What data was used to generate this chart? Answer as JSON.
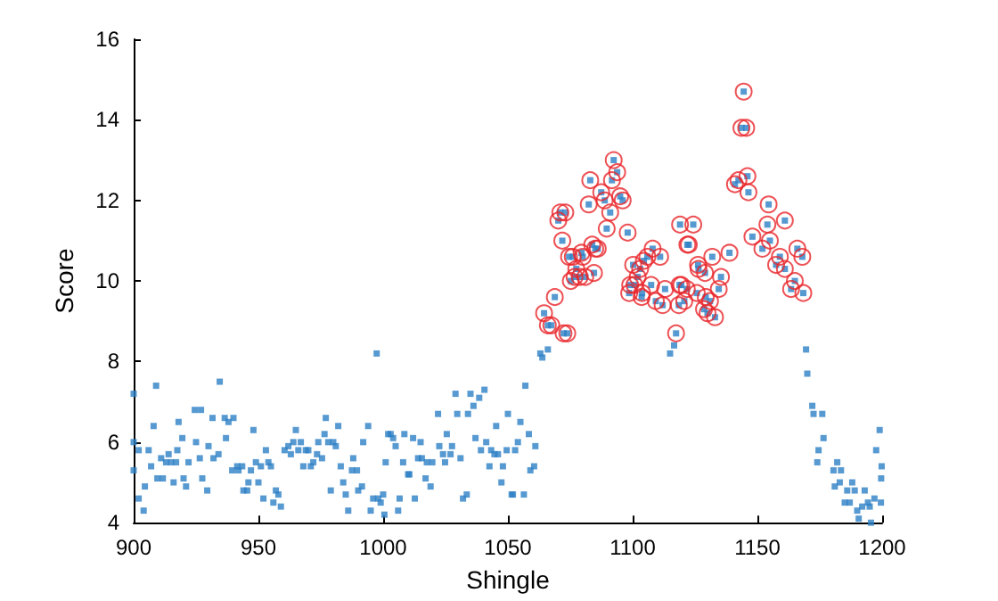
{
  "chart_data": {
    "type": "scatter",
    "xlabel": "Shingle",
    "ylabel": "Score",
    "xlim": [
      900,
      1200
    ],
    "xticks": [
      900,
      950,
      1000,
      1050,
      1100,
      1150,
      1200
    ],
    "ylim": [
      4,
      16
    ],
    "yticks": [
      4,
      6,
      8,
      10,
      12,
      14,
      16
    ],
    "grid": false,
    "series": [
      {
        "color": "#2d7fc6",
        "marker": "square",
        "x": [
          900,
          909,
          900,
          902,
          900,
          902,
          904,
          904.5,
          906,
          907,
          908,
          909.5,
          911,
          911.7,
          913,
          914,
          915,
          916,
          917,
          917.5,
          918,
          919.5,
          920,
          921,
          922,
          924.5,
          925,
          926.5,
          927,
          927.5,
          929.5,
          930,
          931.6,
          932,
          934,
          934.5,
          936.5,
          937,
          938,
          939.5,
          940,
          941.5,
          942,
          943.5,
          944,
          945.5,
          946,
          947,
          948,
          949,
          950,
          951,
          952,
          953,
          954,
          955,
          956,
          957,
          958,
          959,
          960.5,
          962,
          963,
          964,
          965,
          966,
          967,
          968,
          969,
          970,
          971,
          972,
          973.5,
          974,
          975.5,
          976.5,
          977,
          978,
          979,
          980,
          981,
          982,
          983,
          984,
          985,
          986,
          987.5,
          988,
          989.5,
          990,
          991.5,
          992,
          994,
          995,
          996,
          997.4,
          998,
          999,
          1000,
          1000.5,
          1001,
          1002,
          1003,
          1004,
          1005,
          1006,
          1006.6,
          1008,
          1008.5,
          1010,
          1010.5,
          1012,
          1012.7,
          1014,
          1015,
          1015.5,
          1017,
          1017.5,
          1019,
          1019.7,
          1022,
          1022.5,
          1024,
          1024.8,
          1025.5,
          1027,
          1027.6,
          1029,
          1029.7,
          1031,
          1032,
          1033.5,
          1034,
          1035,
          1036.2,
          1037,
          1038.5,
          1039.2,
          1040.6,
          1041.3,
          1042.6,
          1043.3,
          1044.6,
          1045.3,
          1046,
          1047.4,
          1048,
          1049.5,
          1050,
          1051.5,
          1052,
          1052.9,
          1054,
          1055,
          1056.4,
          1057,
          1058.4,
          1059,
          1060.5,
          1061,
          1063,
          1063.8,
          1066,
          1064.5,
          1066,
          1067.4,
          1068.8,
          1070.2,
          1071,
          1071.8,
          1072.3,
          1073,
          1073.8,
          1074.5,
          1075.2,
          1076,
          1076.7,
          1077.4,
          1078.8,
          1079.5,
          1080,
          1081,
          1082.4,
          1083,
          1083.8,
          1084.5,
          1085,
          1086,
          1087.4,
          1088.8,
          1089.6,
          1091,
          1091.7,
          1092.4,
          1093.8,
          1095,
          1096,
          1098,
          1098.6,
          1099,
          1100.2,
          1100.7,
          1102,
          1103,
          1103.6,
          1103.8,
          1104.5,
          1105.9,
          1107.4,
          1108,
          1109.3,
          1111,
          1112,
          1113,
          1115,
          1116.6,
          1117.4,
          1118.5,
          1118.8,
          1119,
          1119.5,
          1120.7,
          1121.7,
          1121.9,
          1122.5,
          1124.3,
          1125.7,
          1126.2,
          1126.4,
          1128.6,
          1129,
          1129.3,
          1130,
          1131,
          1131.9,
          1133,
          1134.5,
          1135.4,
          1138.8,
          1141,
          1142.4,
          1143.6,
          1144.5,
          1145.5,
          1146,
          1146.4,
          1148,
          1152,
          1154,
          1154.5,
          1155,
          1157.5,
          1159,
          1161,
          1161,
          1163.5,
          1165,
          1166,
          1168,
          1168.4,
          1169.5,
          1170,
          1172,
          1172.5,
          1176,
          1176.5,
          1174.5,
          1174,
          1182,
          1180.5,
          1183.5,
          1181,
          1183,
          1188,
          1186,
          1185,
          1187,
          1189,
          1193,
          1192,
          1190,
          1190.6,
          1195,
          1194.3,
          1196.9,
          1199,
          1197.6,
          1199.8,
          1199.6,
          1199.5,
          1195.5
        ],
        "values": [
          7.2,
          7.4,
          6.0,
          5.8,
          5.3,
          4.6,
          4.3,
          4.9,
          5.8,
          5.4,
          6.4,
          5.1,
          5.6,
          5.1,
          5.5,
          5.7,
          5.5,
          5.0,
          5.5,
          5.8,
          6.5,
          6.1,
          5.1,
          4.9,
          5.5,
          6.8,
          6.0,
          5.6,
          6.8,
          5.1,
          4.8,
          5.9,
          6.6,
          5.6,
          5.7,
          7.5,
          6.6,
          6.1,
          6.5,
          5.3,
          6.6,
          5.4,
          5.3,
          5.4,
          4.8,
          4.8,
          5.0,
          5.3,
          6.3,
          5.5,
          5.0,
          5.4,
          4.6,
          5.8,
          5.5,
          5.4,
          4.5,
          4.8,
          4.7,
          4.4,
          5.8,
          5.9,
          5.7,
          6.0,
          6.3,
          5.8,
          6.0,
          5.4,
          5.8,
          5.8,
          5.4,
          5.5,
          5.7,
          6.0,
          5.6,
          6.2,
          6.6,
          6.0,
          4.8,
          6.0,
          5.9,
          6.4,
          5.4,
          5.0,
          4.7,
          4.3,
          5.3,
          5.6,
          5.3,
          4.8,
          4.9,
          6.0,
          6.4,
          4.3,
          4.6,
          8.2,
          4.6,
          4.5,
          4.7,
          4.2,
          5.5,
          6.2,
          6.2,
          6.1,
          5.9,
          4.3,
          4.6,
          5.5,
          6.2,
          5.2,
          5.2,
          6.1,
          4.6,
          5.6,
          6.0,
          5.6,
          5.1,
          5.5,
          4.9,
          5.5,
          6.7,
          5.9,
          5.7,
          5.5,
          6.2,
          5.7,
          5.9,
          7.2,
          6.7,
          5.6,
          4.6,
          4.7,
          6.7,
          7.2,
          6.9,
          6.1,
          7.1,
          5.8,
          7.3,
          6.0,
          5.4,
          5.8,
          5.7,
          6.4,
          5.7,
          5.0,
          5.4,
          5.8,
          6.7,
          4.7,
          4.7,
          5.8,
          6.0,
          6.5,
          4.7,
          7.4,
          6.2,
          5.3,
          5.4,
          5.9,
          8.2,
          8.1,
          8.3,
          9.2,
          8.9,
          8.9,
          9.6,
          11.5,
          11.7,
          11.0,
          8.7,
          11.7,
          8.7,
          10.6,
          10.0,
          10.6,
          10.1,
          10.3,
          10.1,
          10.7,
          10.6,
          10.1,
          11.9,
          12.5,
          10.9,
          10.2,
          10.8,
          10.8,
          12.2,
          12.0,
          11.3,
          11.7,
          12.5,
          13.0,
          12.7,
          12.1,
          12.0,
          11.2,
          9.7,
          9.9,
          10.4,
          9.9,
          10.1,
          10.3,
          9.6,
          9.7,
          10.5,
          10.6,
          9.9,
          10.8,
          9.5,
          10.6,
          9.4,
          9.8,
          8.2,
          8.4,
          8.7,
          9.4,
          9.9,
          11.4,
          9.9,
          9.5,
          9.8,
          10.9,
          10.9,
          11.4,
          9.7,
          10.4,
          10.3,
          9.3,
          10.2,
          9.6,
          9.2,
          9.5,
          10.6,
          9.1,
          9.8,
          10.1,
          10.7,
          12.4,
          12.5,
          13.8,
          14.7,
          13.8,
          12.6,
          12.2,
          11.1,
          10.8,
          11.4,
          11.9,
          11.0,
          10.4,
          10.6,
          11.5,
          10.3,
          9.8,
          10.0,
          10.8,
          10.6,
          9.7,
          8.3,
          7.7,
          6.9,
          6.7,
          6.7,
          6.1,
          5.8,
          5.5,
          5.5,
          5.3,
          5.3,
          4.9,
          5.0,
          5.0,
          4.8,
          4.5,
          4.5,
          4.8,
          4.8,
          4.4,
          4.3,
          4.1,
          4.4,
          4.5,
          4.6,
          6.3,
          5.8,
          5.4,
          5.1,
          4.5,
          4.0
        ]
      },
      {
        "color": "#e8262a",
        "marker": "circle",
        "x": [
          1064.5,
          1066,
          1067.4,
          1068.8,
          1070.2,
          1071,
          1071.8,
          1072.3,
          1073,
          1073.8,
          1074.5,
          1075.2,
          1076,
          1076.7,
          1077.4,
          1078.8,
          1079.5,
          1080,
          1081,
          1082.4,
          1083,
          1083.8,
          1084.5,
          1085,
          1086,
          1087.4,
          1088.8,
          1089.6,
          1091,
          1091.7,
          1092.4,
          1093.8,
          1095,
          1096,
          1098,
          1098.6,
          1099,
          1100.2,
          1100.7,
          1102,
          1103,
          1103.6,
          1103.8,
          1104.5,
          1105.9,
          1107.4,
          1108,
          1109.3,
          1111,
          1112,
          1113,
          1117.4,
          1118.5,
          1118.8,
          1119,
          1119.5,
          1120.7,
          1121.7,
          1121.9,
          1122.5,
          1124.3,
          1125.7,
          1126.2,
          1126.4,
          1128.6,
          1129,
          1129.3,
          1130,
          1131,
          1131.9,
          1133,
          1134.5,
          1135.4,
          1138.8,
          1141,
          1142.4,
          1143.6,
          1144.5,
          1145.5,
          1146,
          1146.4,
          1148,
          1152,
          1154,
          1154.5,
          1155,
          1157.5,
          1159,
          1161,
          1161,
          1163.5,
          1165,
          1166,
          1168,
          1168.4
        ],
        "values": [
          9.2,
          8.9,
          8.9,
          9.6,
          11.5,
          11.7,
          11.0,
          8.7,
          11.7,
          8.7,
          10.6,
          10.0,
          10.6,
          10.1,
          10.3,
          10.1,
          10.7,
          10.6,
          10.1,
          11.9,
          12.5,
          10.9,
          10.2,
          10.8,
          10.8,
          12.2,
          12.0,
          11.3,
          11.7,
          12.5,
          13.0,
          12.7,
          12.1,
          12.0,
          11.2,
          9.7,
          9.9,
          10.4,
          9.9,
          10.1,
          10.3,
          9.6,
          9.7,
          10.5,
          10.6,
          9.9,
          10.8,
          9.5,
          10.6,
          9.4,
          9.8,
          8.7,
          9.4,
          9.9,
          11.4,
          9.9,
          9.5,
          9.8,
          10.9,
          10.9,
          11.4,
          9.7,
          10.4,
          10.3,
          9.3,
          10.2,
          9.6,
          9.2,
          9.5,
          10.6,
          9.1,
          9.8,
          10.1,
          10.7,
          12.4,
          12.5,
          13.8,
          14.7,
          13.8,
          12.6,
          12.2,
          11.1,
          10.8,
          11.4,
          11.9,
          11.0,
          10.4,
          10.6,
          11.5,
          10.3,
          9.8,
          10.0,
          10.8,
          10.6,
          9.7
        ]
      }
    ]
  }
}
